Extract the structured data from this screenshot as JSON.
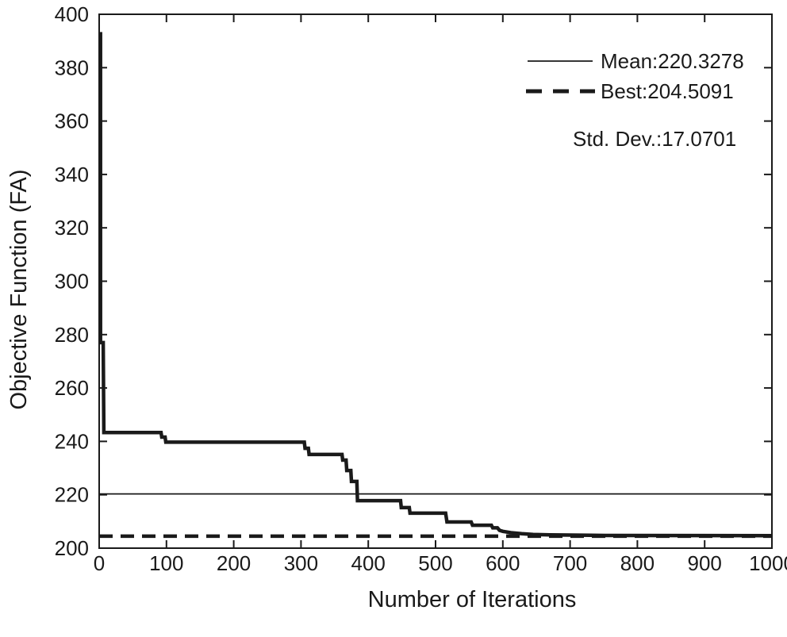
{
  "chart_data": {
    "type": "line",
    "title": "",
    "xlabel": "Number of Iterations",
    "ylabel": "Objective Function (FA)",
    "xlim": [
      0,
      1000
    ],
    "ylim": [
      200,
      400
    ],
    "xticks": [
      0,
      100,
      200,
      300,
      400,
      500,
      600,
      700,
      800,
      900,
      1000
    ],
    "yticks": [
      200,
      220,
      240,
      260,
      280,
      300,
      320,
      340,
      360,
      380,
      400
    ],
    "grid": false,
    "legend": {
      "position": "top-right",
      "mean_label": "Mean:220.3278",
      "best_label": "Best:204.5091",
      "std_label": "Std. Dev.:17.0701"
    },
    "stats": {
      "mean": 220.3278,
      "best": 204.5091,
      "std_dev": 17.0701
    },
    "colors": {
      "line": "#1a1a1a",
      "text": "#1a1a1a",
      "background": "#ffffff"
    },
    "series": [
      {
        "name": "mean-reference",
        "type": "hline",
        "style": "thin-solid",
        "value": 220.3278
      },
      {
        "name": "convergence-curve",
        "type": "steps",
        "style": "thick-solid",
        "points": [
          [
            0,
            392.7
          ],
          [
            2,
            392.7
          ],
          [
            2,
            277.0
          ],
          [
            6,
            277.0
          ],
          [
            7,
            243.3
          ],
          [
            92,
            243.3
          ],
          [
            93,
            241.6
          ],
          [
            98,
            241.6
          ],
          [
            99,
            239.7
          ],
          [
            305,
            239.7
          ],
          [
            306,
            237.4
          ],
          [
            311,
            237.4
          ],
          [
            312,
            235.1
          ],
          [
            361,
            235.1
          ],
          [
            362,
            233.0
          ],
          [
            367,
            233.0
          ],
          [
            368,
            229.1
          ],
          [
            374,
            229.1
          ],
          [
            375,
            225.0
          ],
          [
            383,
            225.0
          ],
          [
            384,
            217.8
          ],
          [
            448,
            217.8
          ],
          [
            449,
            215.2
          ],
          [
            461,
            215.2
          ],
          [
            462,
            213.1
          ],
          [
            515,
            213.1
          ],
          [
            517,
            209.8
          ],
          [
            553,
            209.8
          ],
          [
            555,
            208.6
          ],
          [
            583,
            208.6
          ],
          [
            585,
            207.6
          ],
          [
            592,
            207.6
          ],
          [
            595,
            206.7
          ],
          [
            600,
            206.3
          ],
          [
            612,
            205.8
          ],
          [
            628,
            205.4
          ],
          [
            645,
            205.1
          ],
          [
            670,
            205.0
          ],
          [
            700,
            204.9
          ],
          [
            730,
            204.8
          ],
          [
            760,
            204.75
          ],
          [
            1000,
            204.7
          ]
        ]
      },
      {
        "name": "best-reference",
        "type": "hline",
        "style": "thick-dashed",
        "value": 204.5091
      }
    ]
  }
}
